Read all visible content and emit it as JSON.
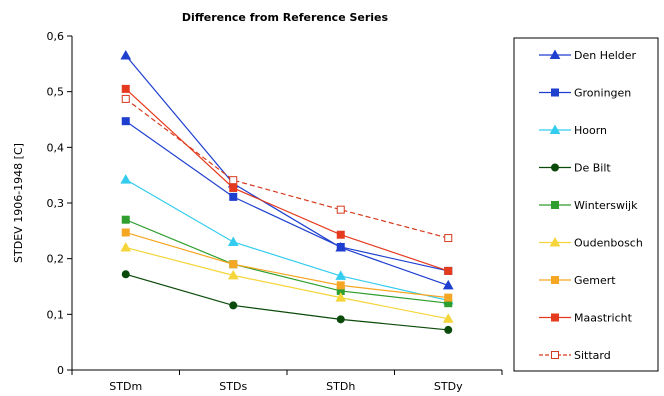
{
  "chart_data": {
    "type": "line",
    "title": "Difference from Reference Series",
    "ylabel": "STDEV 1906-1948  [C]",
    "xlabel": "",
    "categories": [
      "STDm",
      "STDs",
      "STDh",
      "STDy"
    ],
    "ylim": [
      0,
      0.6
    ],
    "yticks": [
      "0",
      "0,1",
      "0,2",
      "0,3",
      "0,4",
      "0,5",
      "0,6"
    ],
    "grid": false,
    "legend_position": "right",
    "series": [
      {
        "name": "Den Helder",
        "values": [
          0.565,
          0.335,
          0.22,
          0.152
        ],
        "color": "#1f3fcf",
        "marker": "triangle",
        "filled": true,
        "dashed": false
      },
      {
        "name": "Groningen",
        "values": [
          0.447,
          0.311,
          0.221,
          0.178
        ],
        "color": "#1f3fcf",
        "marker": "square",
        "filled": true,
        "dashed": false
      },
      {
        "name": "Hoorn",
        "values": [
          0.342,
          0.23,
          0.169,
          0.125
        ],
        "color": "#33ccee",
        "marker": "triangle",
        "filled": true,
        "dashed": false
      },
      {
        "name": "De Bilt",
        "values": [
          0.172,
          0.116,
          0.091,
          0.072
        ],
        "color": "#0a4a0a",
        "marker": "circle",
        "filled": true,
        "dashed": false
      },
      {
        "name": "Winterswijk",
        "values": [
          0.27,
          0.19,
          0.142,
          0.12
        ],
        "color": "#2e9e2e",
        "marker": "square",
        "filled": true,
        "dashed": false
      },
      {
        "name": "Oudenbosch",
        "values": [
          0.22,
          0.17,
          0.13,
          0.092
        ],
        "color": "#f5d53a",
        "marker": "triangle",
        "filled": true,
        "dashed": false
      },
      {
        "name": "Gemert",
        "values": [
          0.247,
          0.19,
          0.152,
          0.13
        ],
        "color": "#f5a623",
        "marker": "square",
        "filled": true,
        "dashed": false
      },
      {
        "name": "Maastricht",
        "values": [
          0.505,
          0.327,
          0.243,
          0.178
        ],
        "color": "#e63a1e",
        "marker": "square",
        "filled": true,
        "dashed": false
      },
      {
        "name": "Sittard",
        "values": [
          0.487,
          0.341,
          0.288,
          0.237
        ],
        "color": "#d63a1e",
        "marker": "square",
        "filled": false,
        "dashed": true
      }
    ]
  }
}
